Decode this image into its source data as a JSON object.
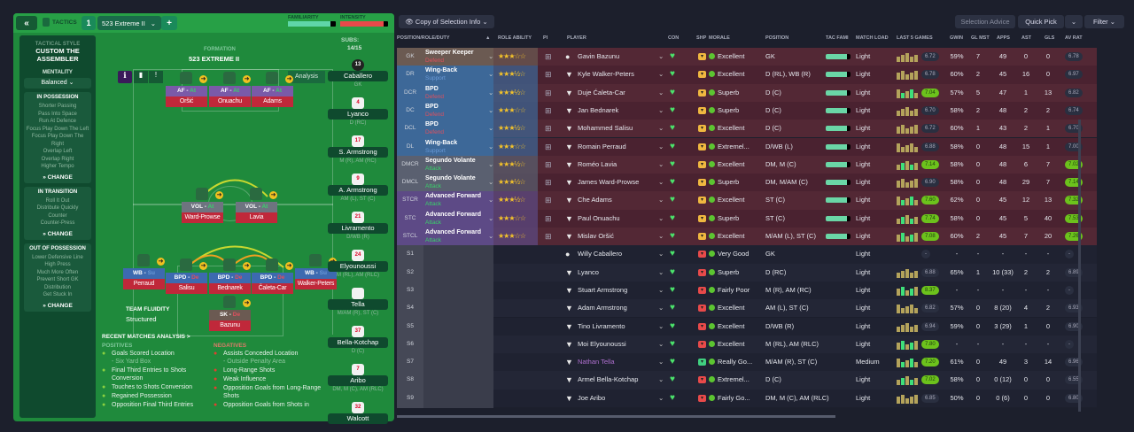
{
  "tactics": {
    "tab_label": "TACTICS",
    "slot_number": "1",
    "tactic_name": "523 Extreme II",
    "familiarity_label": "FAMILIARITY",
    "intensity_label": "INTENSITY",
    "familiarity_pct": 88,
    "intensity_pct": 90
  },
  "sidebar": {
    "style_label": "TACTICAL STYLE",
    "style_value": "CUSTOM THE ASSEMBLER",
    "mentality_label": "MENTALITY",
    "mentality_value": "Balanced",
    "sections": [
      {
        "title": "IN POSSESSION",
        "items": [
          "Shorter Passing",
          "Pass Into Space",
          "Run At Defence",
          "Focus Play Down The Left",
          "Focus Play Down The Right",
          "Overlap Left",
          "Overlap Right",
          "Higher Tempo"
        ],
        "change": "CHANGE"
      },
      {
        "title": "IN TRANSITION",
        "items": [
          "Roll It Out",
          "Distribute Quickly",
          "Counter",
          "Counter-Press"
        ],
        "change": "CHANGE"
      },
      {
        "title": "OUT OF POSSESSION",
        "items": [
          "Lower Defensive Line",
          "High Press",
          "Much More Often",
          "Prevent Short GK",
          "Distribution",
          "Get Stuck In"
        ],
        "change": "CHANGE"
      }
    ]
  },
  "pitch": {
    "formation_label": "FORMATION",
    "formation_value": "523 EXTREME II",
    "analysis_label": "Analysis",
    "subs_label": "SUBS:",
    "subs_count": "14/15",
    "fluidity_label": "TEAM FLUIDITY",
    "fluidity_value": "Structured",
    "players": [
      {
        "role": "AF",
        "duty": "At",
        "name": "Oršić"
      },
      {
        "role": "AF",
        "duty": "At",
        "name": "Onuachu"
      },
      {
        "role": "AF",
        "duty": "At",
        "name": "Adams"
      },
      {
        "role": "VOL",
        "duty": "At",
        "name": "Ward-Prowse"
      },
      {
        "role": "VOL",
        "duty": "At",
        "name": "Lavia"
      },
      {
        "role": "WB",
        "duty": "Su",
        "name": "Perraud"
      },
      {
        "role": "BPD",
        "duty": "De",
        "name": "Salisu"
      },
      {
        "role": "BPD",
        "duty": "De",
        "name": "Bednarek"
      },
      {
        "role": "BPD",
        "duty": "De",
        "name": "Čaleta-Car"
      },
      {
        "role": "WB",
        "duty": "Su",
        "name": "Walker-Peters"
      },
      {
        "role": "SK",
        "duty": "De",
        "name": "Bazunu"
      }
    ],
    "subs": [
      {
        "num": "13",
        "name": "Caballero",
        "pos": "GK"
      },
      {
        "num": "4",
        "name": "Lyanco",
        "pos": "D (RC)"
      },
      {
        "num": "17",
        "name": "S. Armstrong",
        "pos": "M (R), AM (RC)"
      },
      {
        "num": "9",
        "name": "A. Armstrong",
        "pos": "AM (L), ST (C)"
      },
      {
        "num": "21",
        "name": "Livramento",
        "pos": "D/WB (R)"
      },
      {
        "num": "24",
        "name": "Elyounoussi",
        "pos": "M (RL), AM (RLC)"
      },
      {
        "num": "",
        "name": "Tella",
        "pos": "M/AM (R), ST (C)"
      },
      {
        "num": "37",
        "name": "Bella-Kotchap",
        "pos": "D (C)"
      },
      {
        "num": "7",
        "name": "Aribo",
        "pos": "DM, M (C), AM (RLC)"
      },
      {
        "num": "32",
        "name": "Walcott",
        "pos": ""
      }
    ]
  },
  "analysis": {
    "title": "RECENT MATCHES ANALYSIS >",
    "positives_label": "POSITIVES",
    "negatives_label": "NEGATIVES",
    "positives": [
      {
        "text": "Goals Scored Location",
        "sub": "- Six Yard Box"
      },
      {
        "text": "Final Third Entries to Shots Conversion",
        "sub": ""
      },
      {
        "text": "Touches to Shots Conversion",
        "sub": ""
      },
      {
        "text": "Regained Possession",
        "sub": ""
      },
      {
        "text": "Opposition Final Third Entries",
        "sub": ""
      }
    ],
    "negatives": [
      {
        "text": "Assists Conceded Location",
        "sub": "- Outside Penalty Area"
      },
      {
        "text": "Long-Range Shots",
        "sub": ""
      },
      {
        "text": "Weak Influence",
        "sub": ""
      },
      {
        "text": "Opposition Goals from Long-Range Shots",
        "sub": ""
      },
      {
        "text": "Opposition Goals from Shots in",
        "sub": ""
      }
    ]
  },
  "toolbar": {
    "view_label": "Copy of Selection Info",
    "selection_advice": "Selection Advice",
    "quick_pick": "Quick Pick",
    "filter": "Filter"
  },
  "columns": [
    "POSITION/ROLE/DUTY",
    "ROLE ABILITY",
    "PI",
    "PLAYER",
    "CON",
    "SHP",
    "MORALE",
    "POSITION",
    "TAC FAMI",
    "MATCH LOAD",
    "LAST 5 GAMES",
    "GWIN",
    "GL MST",
    "APPS",
    "AST",
    "GLS",
    "AV RAT"
  ],
  "colors": {
    "gk": "#6b5a52",
    "def": "#3d6898",
    "dm": "#5a6070",
    "st": "#5d4a86",
    "starter_row": "#4f2533",
    "duty_defend": "#e0505e",
    "duty_support": "#6a9ad8",
    "duty_attack": "#39d26a"
  },
  "rows": [
    {
      "code": "GK",
      "role": "Sweeper Keeper",
      "duty": "Defend",
      "grp": "gk",
      "stars": 3,
      "name": "Gavin Bazunu",
      "morale": "Excellent",
      "pos": "GK",
      "load": "Light",
      "form": "6.72",
      "good": false,
      "gwin": "59%",
      "glmst": "7",
      "apps": "49",
      "ast": "0",
      "gls": "0",
      "avrat": "6.78",
      "avgood": false
    },
    {
      "code": "DR",
      "role": "Wing-Back",
      "duty": "Support",
      "grp": "def",
      "stars": 3.5,
      "name": "Kyle Walker-Peters",
      "morale": "Excellent",
      "pos": "D (RL), WB (R)",
      "load": "Light",
      "form": "6.78",
      "good": false,
      "gwin": "60%",
      "glmst": "2",
      "apps": "45",
      "ast": "16",
      "gls": "0",
      "avrat": "6.97",
      "avgood": false
    },
    {
      "code": "DCR",
      "role": "BPD",
      "duty": "Defend",
      "grp": "def",
      "stars": 3.5,
      "name": "Duje Ćaleta-Car",
      "morale": "Superb",
      "pos": "D (C)",
      "load": "Light",
      "form": "7.04",
      "good": true,
      "gwin": "57%",
      "glmst": "5",
      "apps": "47",
      "ast": "1",
      "gls": "13",
      "avrat": "6.82",
      "avgood": false
    },
    {
      "code": "DC",
      "role": "BPD",
      "duty": "Defend",
      "grp": "def",
      "stars": 3,
      "name": "Jan Bednarek",
      "morale": "Superb",
      "pos": "D (C)",
      "load": "Light",
      "form": "6.70",
      "good": false,
      "gwin": "58%",
      "glmst": "2",
      "apps": "48",
      "ast": "2",
      "gls": "2",
      "avrat": "6.74",
      "avgood": false
    },
    {
      "code": "DCL",
      "role": "BPD",
      "duty": "Defend",
      "grp": "def",
      "stars": 3.5,
      "name": "Mohammed Salisu",
      "morale": "Excellent",
      "pos": "D (C)",
      "load": "Light",
      "form": "6.72",
      "good": false,
      "gwin": "60%",
      "glmst": "1",
      "apps": "43",
      "ast": "2",
      "gls": "1",
      "avrat": "6.70",
      "avgood": false
    },
    {
      "code": "DL",
      "role": "Wing-Back",
      "duty": "Support",
      "grp": "def",
      "stars": 3,
      "name": "Romain Perraud",
      "morale": "Extremel...",
      "pos": "D/WB (L)",
      "load": "Light",
      "form": "6.88",
      "good": false,
      "gwin": "58%",
      "glmst": "0",
      "apps": "48",
      "ast": "15",
      "gls": "1",
      "avrat": "7.00",
      "avgood": false
    },
    {
      "code": "DMCR",
      "role": "Segundo Volante",
      "duty": "Attack",
      "grp": "dm",
      "stars": 3.5,
      "name": "Roméo Lavia",
      "morale": "Excellent",
      "pos": "DM, M (C)",
      "load": "Light",
      "form": "7.14",
      "good": true,
      "gwin": "58%",
      "glmst": "0",
      "apps": "48",
      "ast": "6",
      "gls": "7",
      "avrat": "7.02",
      "avgood": true
    },
    {
      "code": "DMCL",
      "role": "Segundo Volante",
      "duty": "Attack",
      "grp": "dm",
      "stars": 3.5,
      "name": "James Ward-Prowse",
      "morale": "Superb",
      "pos": "DM, M/AM (C)",
      "load": "Light",
      "form": "6.90",
      "good": false,
      "gwin": "58%",
      "glmst": "0",
      "apps": "48",
      "ast": "29",
      "gls": "7",
      "avrat": "7.14",
      "avgood": true
    },
    {
      "code": "STCR",
      "role": "Advanced Forward",
      "duty": "Attack",
      "grp": "st",
      "stars": 3.5,
      "name": "Che Adams",
      "morale": "Excellent",
      "pos": "ST (C)",
      "load": "Light",
      "form": "7.60",
      "good": true,
      "gwin": "62%",
      "glmst": "0",
      "apps": "45",
      "ast": "12",
      "gls": "13",
      "avrat": "7.32",
      "avgood": true
    },
    {
      "code": "STC",
      "role": "Advanced Forward",
      "duty": "Attack",
      "grp": "st",
      "stars": 3,
      "name": "Paul Onuachu",
      "morale": "Superb",
      "pos": "ST (C)",
      "load": "Light",
      "form": "7.74",
      "good": true,
      "gwin": "58%",
      "glmst": "0",
      "apps": "45",
      "ast": "5",
      "gls": "40",
      "avrat": "7.53",
      "avgood": true
    },
    {
      "code": "STCL",
      "role": "Advanced Forward",
      "duty": "Attack",
      "grp": "st",
      "stars": 3,
      "name": "Mislav Oršić",
      "morale": "Excellent",
      "pos": "M/AM (L), ST (C)",
      "load": "Light",
      "form": "7.08",
      "good": true,
      "gwin": "60%",
      "glmst": "2",
      "apps": "45",
      "ast": "7",
      "gls": "20",
      "avrat": "7.26",
      "avgood": true
    },
    {
      "code": "S1",
      "name": "Willy Caballero",
      "morale": "Very Good",
      "pos": "GK",
      "load": "Light",
      "form": "-",
      "good": false,
      "gwin": "-",
      "glmst": "-",
      "apps": "-",
      "ast": "-",
      "gls": "-",
      "avrat": "-",
      "avgood": false
    },
    {
      "code": "S2",
      "name": "Lyanco",
      "morale": "Superb",
      "pos": "D (RC)",
      "load": "Light",
      "form": "6.88",
      "good": false,
      "gwin": "65%",
      "glmst": "1",
      "apps": "10 (33)",
      "ast": "2",
      "gls": "2",
      "avrat": "6.89",
      "avgood": false
    },
    {
      "code": "S3",
      "name": "Stuart Armstrong",
      "morale": "Fairly Poor",
      "pos": "M (R), AM (RC)",
      "load": "Light",
      "form": "8.37",
      "good": true,
      "gwin": "-",
      "glmst": "-",
      "apps": "-",
      "ast": "-",
      "gls": "-",
      "avrat": "-",
      "avgood": false
    },
    {
      "code": "S4",
      "name": "Adam Armstrong",
      "morale": "Excellent",
      "pos": "AM (L), ST (C)",
      "load": "Light",
      "form": "6.82",
      "good": false,
      "gwin": "57%",
      "glmst": "0",
      "apps": "8 (20)",
      "ast": "4",
      "gls": "2",
      "avrat": "6.93",
      "avgood": false
    },
    {
      "code": "S5",
      "name": "Tino Livramento",
      "morale": "Excellent",
      "pos": "D/WB (R)",
      "load": "Light",
      "form": "6.94",
      "good": false,
      "gwin": "59%",
      "glmst": "0",
      "apps": "3 (29)",
      "ast": "1",
      "gls": "0",
      "avrat": "6.90",
      "avgood": false
    },
    {
      "code": "S6",
      "name": "Moi Elyounoussi",
      "morale": "Excellent",
      "pos": "M (RL), AM (RLC)",
      "load": "Light",
      "form": "7.80",
      "good": true,
      "gwin": "-",
      "glmst": "-",
      "apps": "-",
      "ast": "-",
      "gls": "-",
      "avrat": "-",
      "avgood": false
    },
    {
      "code": "S7",
      "name": "Nathan Tella",
      "morale": "Really Go...",
      "pos": "M/AM (R), ST (C)",
      "load": "Medium",
      "form": "7.20",
      "good": true,
      "gwin": "61%",
      "glmst": "0",
      "apps": "49",
      "ast": "3",
      "gls": "14",
      "avrat": "6.96",
      "avgood": false
    },
    {
      "code": "S8",
      "name": "Armel Bella-Kotchap",
      "morale": "Extremel...",
      "pos": "D (C)",
      "load": "Light",
      "form": "7.02",
      "good": true,
      "gwin": "58%",
      "glmst": "0",
      "apps": "0 (12)",
      "ast": "0",
      "gls": "0",
      "avrat": "6.55",
      "avgood": false
    },
    {
      "code": "S9",
      "name": "Joe Aribo",
      "morale": "Fairly Go...",
      "pos": "DM, M (C), AM (RLC)",
      "load": "Light",
      "form": "6.85",
      "good": false,
      "gwin": "50%",
      "glmst": "0",
      "apps": "0 (6)",
      "ast": "0",
      "gls": "0",
      "avrat": "6.80",
      "avgood": false
    }
  ]
}
